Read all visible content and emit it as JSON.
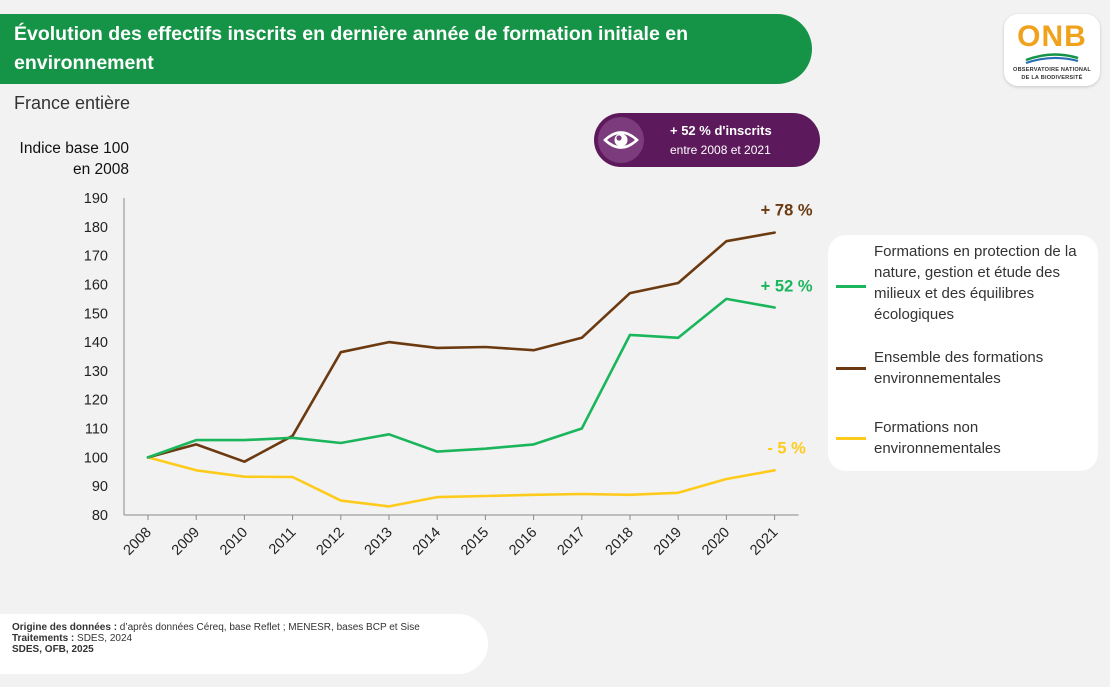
{
  "title": "Évolution des effectifs inscrits en dernière année de formation initiale en environnement",
  "subtitle": "France entière",
  "y_axis_label_line1": "Indice base 100",
  "y_axis_label_line2": "en 2008",
  "logo": {
    "word": "ONB",
    "line1": "OBSERVATOIRE NATIONAL",
    "line2": "DE LA BIODIVERSITÉ"
  },
  "callout": {
    "icon": "eye-icon",
    "main": "+ 52 % d'inscrits",
    "sub": "entre 2008 et 2021"
  },
  "colors": {
    "green": "#1bb55c",
    "brown": "#6b3a10",
    "yellow": "#fecb1d",
    "title_band": "#159447",
    "callout": "#5c1a5c"
  },
  "chart_data": {
    "type": "line",
    "x": [
      "2008",
      "2009",
      "2010",
      "2011",
      "2012",
      "2013",
      "2014",
      "2015",
      "2016",
      "2017",
      "2018",
      "2019",
      "2020",
      "2021"
    ],
    "ylim": [
      80,
      190
    ],
    "yticks": [
      80,
      90,
      100,
      110,
      120,
      130,
      140,
      150,
      160,
      170,
      180,
      190
    ],
    "grid": false,
    "legend_position": "right",
    "series": [
      {
        "name": "Formations en protection de la nature, gestion et étude des milieux et des équilibres écologiques",
        "color": "#1bb55c",
        "end_label": "+ 52 %",
        "values": [
          100,
          106,
          106,
          106.8,
          105,
          108,
          102,
          103,
          104.5,
          110,
          142.5,
          141.5,
          155,
          152
        ]
      },
      {
        "name": "Ensemble des formations environnementales",
        "color": "#6b3a10",
        "end_label": "+ 78 %",
        "values": [
          100,
          104.5,
          98.5,
          107.5,
          136.5,
          140,
          138,
          138.3,
          137.2,
          141.5,
          157,
          160.5,
          175,
          178
        ]
      },
      {
        "name": "Formations non environnementales",
        "color": "#fecb1d",
        "end_label": "- 5 %",
        "values": [
          100,
          95.5,
          93.3,
          93.2,
          85,
          83,
          86.2,
          86.6,
          87,
          87.3,
          87,
          87.7,
          92.5,
          95.5
        ]
      }
    ]
  },
  "source": {
    "label1": "Origine des données :",
    "text1": " d’après données Céreq, base Reflet ; MENESR, bases BCP et Sise",
    "label2": "Traitements :",
    "text2": " SDES, 2024",
    "line3": "SDES, OFB, 2025"
  }
}
